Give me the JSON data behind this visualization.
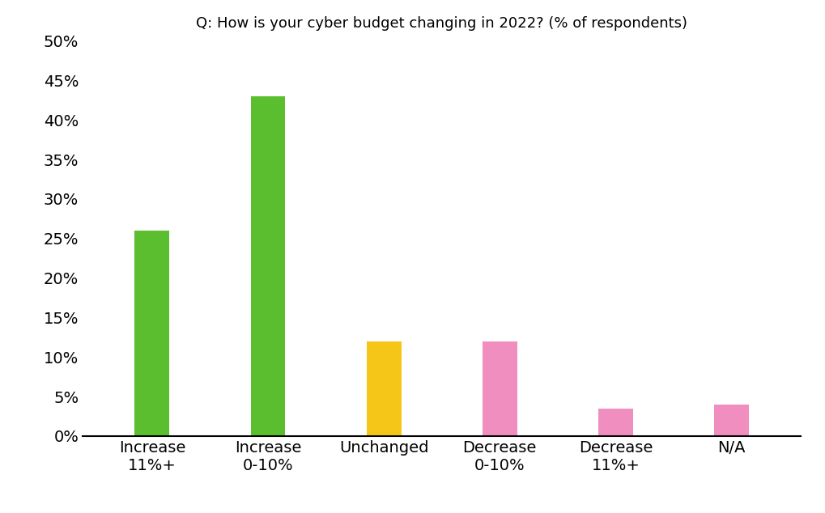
{
  "categories": [
    "Increase\n11%+",
    "Increase\n0-10%",
    "Unchanged",
    "Decrease\n0-10%",
    "Decrease\n11%+",
    "N/A"
  ],
  "values": [
    0.26,
    0.43,
    0.12,
    0.12,
    0.035,
    0.04
  ],
  "colors": [
    "#5abe2e",
    "#5abe2e",
    "#f5c518",
    "#f08ec0",
    "#f08ec0",
    "#f08ec0"
  ],
  "title": "Q: How is your cyber budget changing in 2022? (% of respondents)",
  "ylim": [
    0,
    0.5
  ],
  "yticks": [
    0.0,
    0.05,
    0.1,
    0.15,
    0.2,
    0.25,
    0.3,
    0.35,
    0.4,
    0.45,
    0.5
  ],
  "background_color": "#ffffff",
  "title_fontsize": 13,
  "tick_fontsize": 14,
  "bar_width": 0.3
}
